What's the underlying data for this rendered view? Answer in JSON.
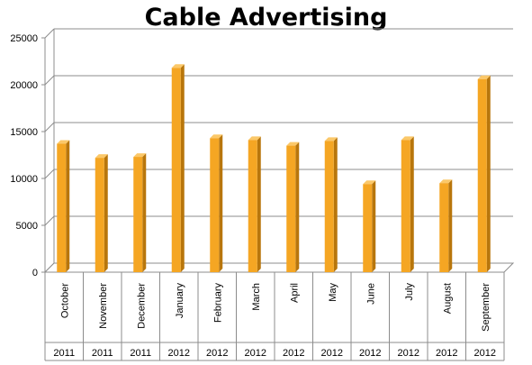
{
  "chart_data": {
    "type": "bar",
    "title": "Cable Advertising",
    "categories": [
      "October",
      "November",
      "December",
      "January",
      "February",
      "March",
      "April",
      "May",
      "June",
      "July",
      "August",
      "September"
    ],
    "years": [
      "2011",
      "2011",
      "2011",
      "2012",
      "2012",
      "2012",
      "2012",
      "2012",
      "2012",
      "2012",
      "2012",
      "2012"
    ],
    "values": [
      13700,
      12200,
      12300,
      21800,
      14300,
      14100,
      13500,
      14000,
      9400,
      14100,
      9500,
      20600
    ],
    "ylim": [
      0,
      25000
    ],
    "yticks": [
      0,
      5000,
      10000,
      15000,
      20000,
      25000
    ],
    "grid": true,
    "legend": "none",
    "colors": {
      "bar_front": "#F5A623",
      "bar_side": "#B8760C",
      "bar_top": "#FBC869",
      "grid": "#8C8C8C"
    }
  }
}
